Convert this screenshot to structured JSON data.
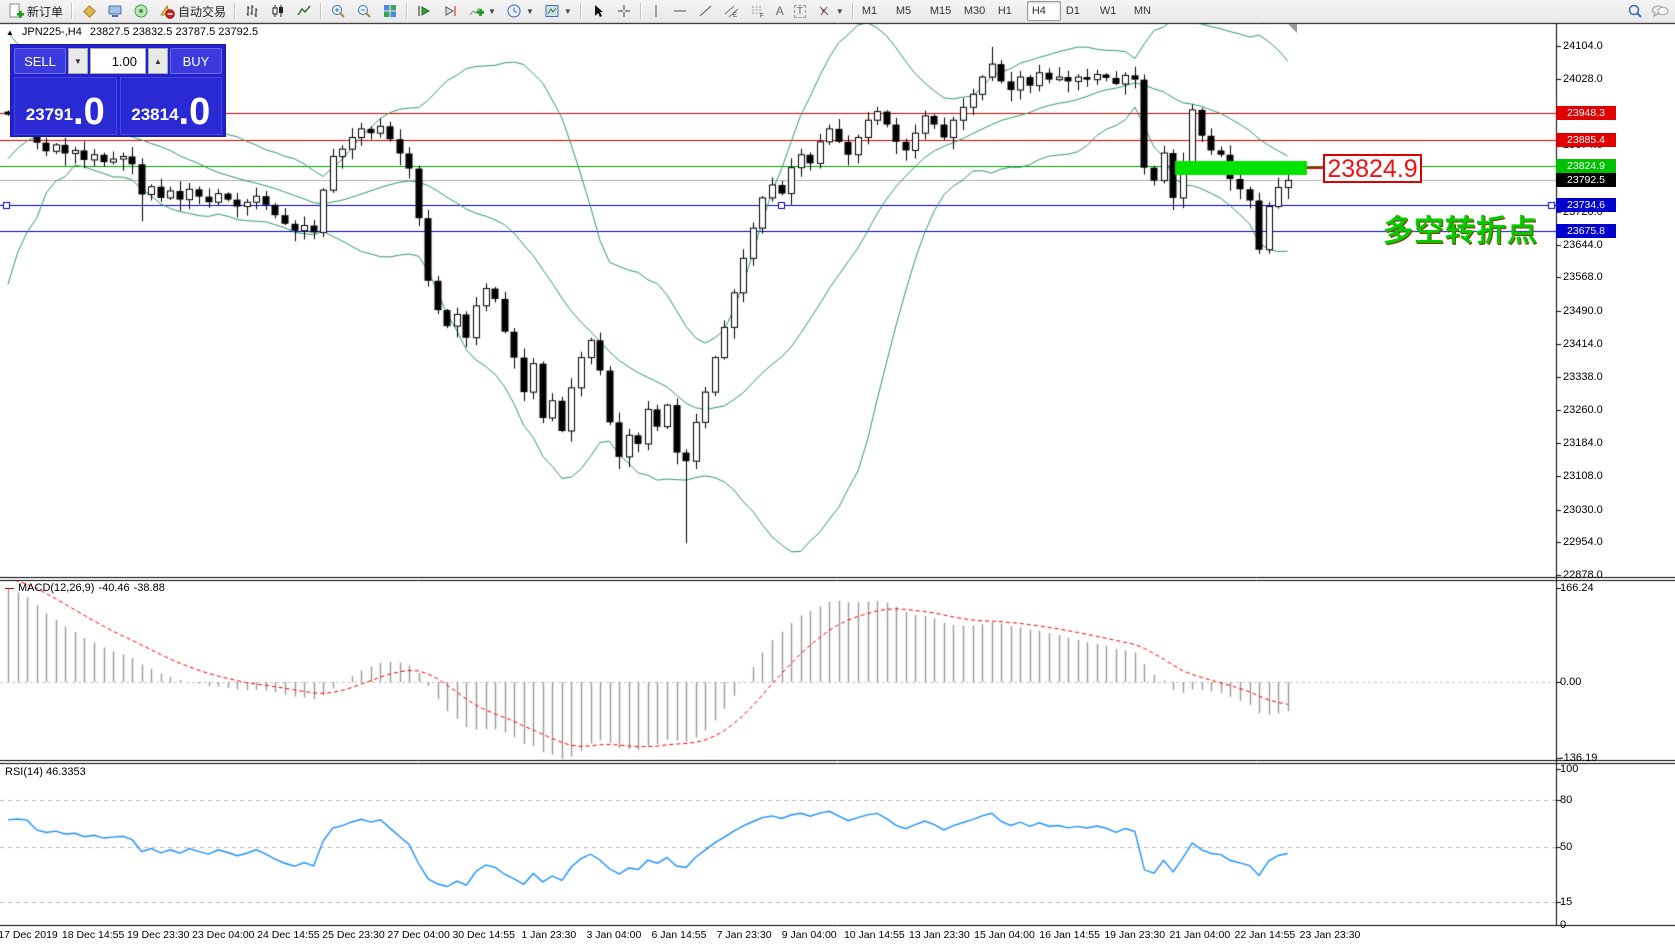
{
  "toolbar": {
    "new_order_label": "新订单",
    "auto_trading_label": "自动交易",
    "timeframes": [
      "M1",
      "M5",
      "M15",
      "M30",
      "H1",
      "H4",
      "D1",
      "W1",
      "MN"
    ],
    "active_timeframe": "H4",
    "tool_glyphs": {
      "channel": "E",
      "fibo": "F",
      "text": "A",
      "textbox": "T"
    }
  },
  "chart_header": {
    "symbol": "JPN225-,H4",
    "ohlc": "23827.5 23832.5 23787.5 23792.5"
  },
  "trade_panel": {
    "sell_label": "SELL",
    "buy_label": "BUY",
    "volume": "1.00",
    "sell_price": "23791",
    "sell_frac": ".0",
    "buy_price": "23814",
    "buy_frac": ".0"
  },
  "price_axis": {
    "ticks": [
      "24104.0",
      "24028.0",
      "23952.0",
      "23874.0",
      "23798.0",
      "23720.0",
      "23644.0",
      "23568.0",
      "23490.0",
      "23414.0",
      "23338.0",
      "23260.0",
      "23184.0",
      "23108.0",
      "23030.0",
      "22954.0",
      "22878.0"
    ],
    "levels": [
      {
        "price": 23948.3,
        "label": "23948.3",
        "color": "#e00000",
        "badge": "#e00000",
        "type": "resistance"
      },
      {
        "price": 23885.4,
        "label": "23885.4",
        "color": "#e00000",
        "badge": "#e00000",
        "type": "resistance"
      },
      {
        "price": 23824.9,
        "label": "23824.9",
        "color": "#00a800",
        "badge": "#00c000",
        "type": "pivot"
      },
      {
        "price": 23792.5,
        "label": "23792.5",
        "color": "#b0b0b0",
        "badge": "#000000",
        "type": "current-price"
      },
      {
        "price": 23734.6,
        "label": "23734.6",
        "color": "#0000cc",
        "badge": "#0000cc",
        "type": "support",
        "handles": true
      },
      {
        "price": 23675.8,
        "label": "23675.8",
        "color": "#0000cc",
        "badge": "#0000cc",
        "type": "support"
      }
    ]
  },
  "annotations": {
    "price_callout": "23824.9",
    "cn_note": "多空转折点",
    "highlight_color": "#00e400"
  },
  "macd": {
    "label": "MACD(12,26,9)",
    "value_main": "-40.46",
    "value_signal": "-38.88",
    "axis": [
      "166.24",
      "0.00",
      "-136.19"
    ]
  },
  "rsi": {
    "label": "RSI(14)",
    "value": "46.3353",
    "levels": [
      "100",
      "80",
      "50",
      "15",
      "0"
    ]
  },
  "date_axis": [
    "17 Dec 2019",
    "18 Dec 14:55",
    "19 Dec 23:30",
    "23 Dec 04:00",
    "24 Dec 14:55",
    "25 Dec 23:30",
    "27 Dec 04:00",
    "30 Dec 14:55",
    "1 Jan 23:30",
    "3 Jan 04:00",
    "6 Jan 14:55",
    "7 Jan 23:30",
    "9 Jan 04:00",
    "10 Jan 14:55",
    "13 Jan 23:30",
    "15 Jan 04:00",
    "16 Jan 14:55",
    "19 Jan 23:30",
    "21 Jan 04:00",
    "22 Jan 14:55",
    "23 Jan 23:30"
  ],
  "chart_data": {
    "type": "candlestick",
    "symbol": "JPN225-",
    "timeframe": "H4",
    "ylim": [
      22878,
      24140
    ],
    "pre_closes": [
      23080,
      23140,
      23060,
      23180,
      23260,
      23200,
      23320,
      23400,
      23340,
      23460,
      23540,
      23480,
      23600,
      23680,
      23620,
      23740,
      23800,
      23760,
      23860,
      23920,
      23880,
      23960,
      24010,
      23970,
      23900,
      23940,
      23900,
      23950,
      23990,
      23952
    ],
    "closes": [
      23945,
      23958,
      23950,
      23880,
      23860,
      23875,
      23855,
      23862,
      23840,
      23852,
      23835,
      23842,
      23848,
      23830,
      23760,
      23778,
      23752,
      23768,
      23748,
      23772,
      23755,
      23742,
      23762,
      23748,
      23732,
      23742,
      23756,
      23736,
      23712,
      23692,
      23676,
      23688,
      23672,
      23770,
      23848,
      23865,
      23892,
      23912,
      23902,
      23918,
      23888,
      23855,
      23820,
      23705,
      23560,
      23492,
      23455,
      23482,
      23428,
      23502,
      23542,
      23518,
      23442,
      23382,
      23302,
      23368,
      23242,
      23282,
      23212,
      23312,
      23382,
      23422,
      23352,
      23232,
      23152,
      23202,
      23182,
      23262,
      23222,
      23272,
      23162,
      23142,
      23232,
      23302,
      23382,
      23452,
      23532,
      23612,
      23682,
      23752,
      23782,
      23762,
      23822,
      23852,
      23832,
      23882,
      23912,
      23882,
      23852,
      23892,
      23932,
      23952,
      23922,
      23882,
      23862,
      23902,
      23942,
      23922,
      23892,
      23932,
      23962,
      23992,
      24032,
      24062,
      24022,
      24002,
      24032,
      24012,
      24042,
      24026,
      24032,
      24022,
      24032,
      24026,
      24038,
      24030,
      24016,
      24036,
      24026,
      23822,
      23792,
      23856,
      23752,
      23836,
      23956,
      23896,
      23862,
      23852,
      23796,
      23772,
      23746,
      23632,
      23732,
      23776,
      23792.5
    ],
    "wick_overrides": {
      "14": {
        "low": 23698
      },
      "71": {
        "low": 22952
      },
      "103": {
        "high": 24102
      },
      "131": {
        "low": 23622
      }
    },
    "indicators": {
      "bollinger": {
        "period": 20,
        "dev": 2
      },
      "macd": {
        "fast": 12,
        "slow": 26,
        "signal": 9
      },
      "rsi": {
        "period": 14
      }
    },
    "highlight_rect": {
      "x1_price_zone": 23808,
      "x2_price_zone": 23838,
      "note": "green consolidation highlight near 23824.9"
    }
  }
}
